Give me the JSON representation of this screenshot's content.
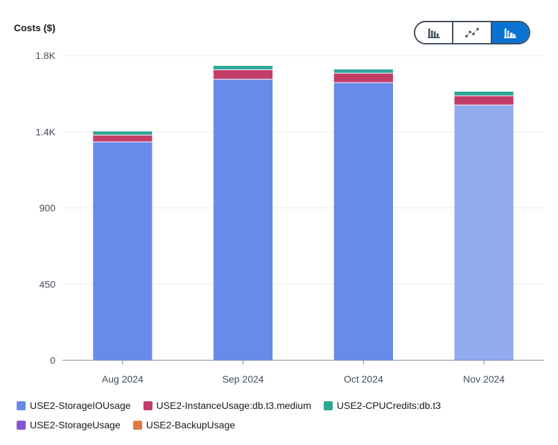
{
  "y_axis_title": "Costs ($)",
  "view_toggle": [
    {
      "icon": "bar-chart-icon",
      "active": false
    },
    {
      "icon": "line-chart-icon",
      "active": false
    },
    {
      "icon": "stacked-bar-chart-icon",
      "active": true
    }
  ],
  "colors": {
    "accent": "#0972d3",
    "grid": "#e9ebed",
    "axis": "#7d8998"
  },
  "chart_data": {
    "type": "bar",
    "stacked": true,
    "categories": [
      "Aug 2024",
      "Sep 2024",
      "Oct 2024",
      "Nov 2024"
    ],
    "y_ticks": [
      "0",
      "450",
      "900",
      "1.4K",
      "1.8K"
    ],
    "y_tick_values": [
      0,
      450,
      900,
      1350,
      1800
    ],
    "ylim": [
      0,
      1800
    ],
    "ylabel": "Costs ($)",
    "grid": true,
    "legend_position": "bottom",
    "forecast_category": "Nov 2024",
    "series": [
      {
        "name": "USE2-StorageIOUsage",
        "color": "#688ae8",
        "values": [
          1290,
          1660,
          1640,
          1508
        ]
      },
      {
        "name": "USE2-InstanceUsage:db.t3.medium",
        "color": "#c33d69",
        "values": [
          40,
          56,
          56,
          54
        ]
      },
      {
        "name": "USE2-CPUCredits:db.t3",
        "color": "#2ea597",
        "values": [
          24,
          25,
          24,
          27
        ]
      },
      {
        "name": "USE2-StorageUsage",
        "color": "#8456ce",
        "values": [
          1,
          1,
          1,
          1
        ]
      },
      {
        "name": "USE2-BackupUsage",
        "color": "#e07941",
        "values": [
          0,
          0,
          0,
          0
        ]
      }
    ]
  }
}
